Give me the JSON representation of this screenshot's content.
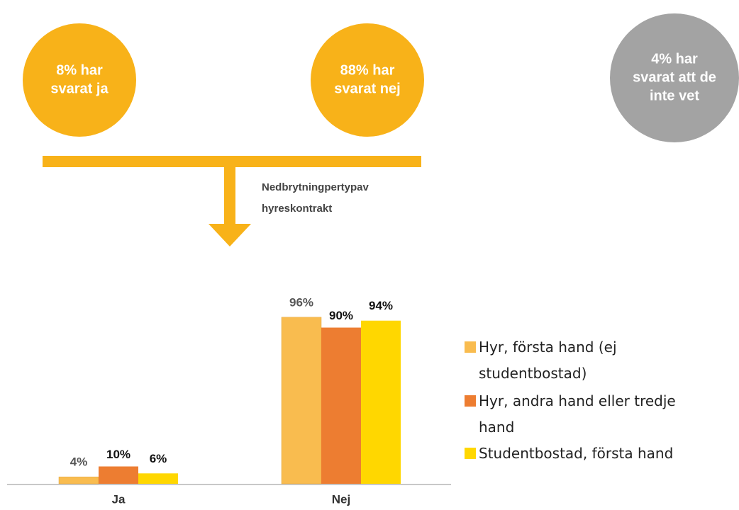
{
  "circles": [
    {
      "lines": [
        "8% har",
        "svarat ja"
      ]
    },
    {
      "lines": [
        "88% har",
        "svarat nej"
      ]
    },
    {
      "lines": [
        "4% har",
        "svarat att de",
        "inte vet"
      ]
    }
  ],
  "annotation": {
    "lines": [
      "Nedbrytningpertypav",
      "hyreskontrakt"
    ]
  },
  "chart_data": {
    "type": "bar",
    "categories": [
      "Ja",
      "Nej"
    ],
    "series": [
      {
        "name": "Hyr, första hand (ej studentbostad)",
        "color": "#F9BC4F",
        "values": [
          4,
          96
        ],
        "value_labels": [
          "4%",
          "96%"
        ]
      },
      {
        "name": "Hyr, andra hand eller tredje hand",
        "color": "#ED7D31",
        "values": [
          10,
          90
        ],
        "value_labels": [
          "10%",
          "90%"
        ]
      },
      {
        "name": "Studentbostad, första hand",
        "color": "#FFD700",
        "values": [
          6,
          94
        ],
        "value_labels": [
          "6%",
          "94%"
        ]
      }
    ]
  }
}
